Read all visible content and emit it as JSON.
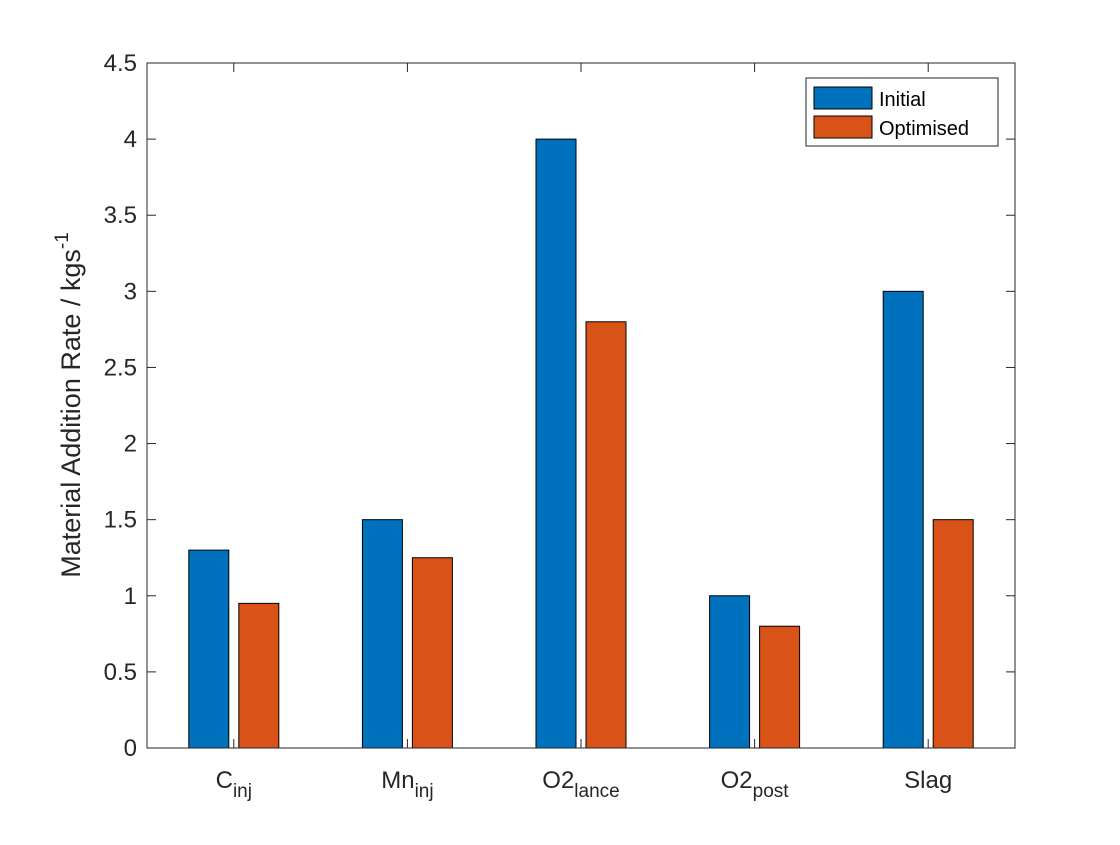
{
  "chart_data": {
    "type": "bar",
    "categories": [
      {
        "base": "C",
        "sub": "inj"
      },
      {
        "base": "Mn",
        "sub": "inj"
      },
      {
        "base": "O2",
        "sub": "lance"
      },
      {
        "base": "O2",
        "sub": "post"
      },
      {
        "base": "Slag",
        "sub": ""
      }
    ],
    "series": [
      {
        "name": "Initial",
        "color": "#0072BD",
        "values": [
          1.3,
          1.5,
          4.0,
          1.0,
          3.0
        ]
      },
      {
        "name": "Optimised",
        "color": "#D95319",
        "values": [
          0.95,
          1.25,
          2.8,
          0.8,
          1.5
        ]
      }
    ],
    "ylabel": {
      "text": "Material Addition Rate / kgs",
      "superscript": "-1"
    },
    "xlabel": "",
    "ylim": [
      0,
      4.5
    ],
    "yticks": [
      "0",
      "0.5",
      "1",
      "1.5",
      "2",
      "2.5",
      "3",
      "3.5",
      "4",
      "4.5"
    ],
    "grid": false,
    "legend_position": "top-right"
  }
}
